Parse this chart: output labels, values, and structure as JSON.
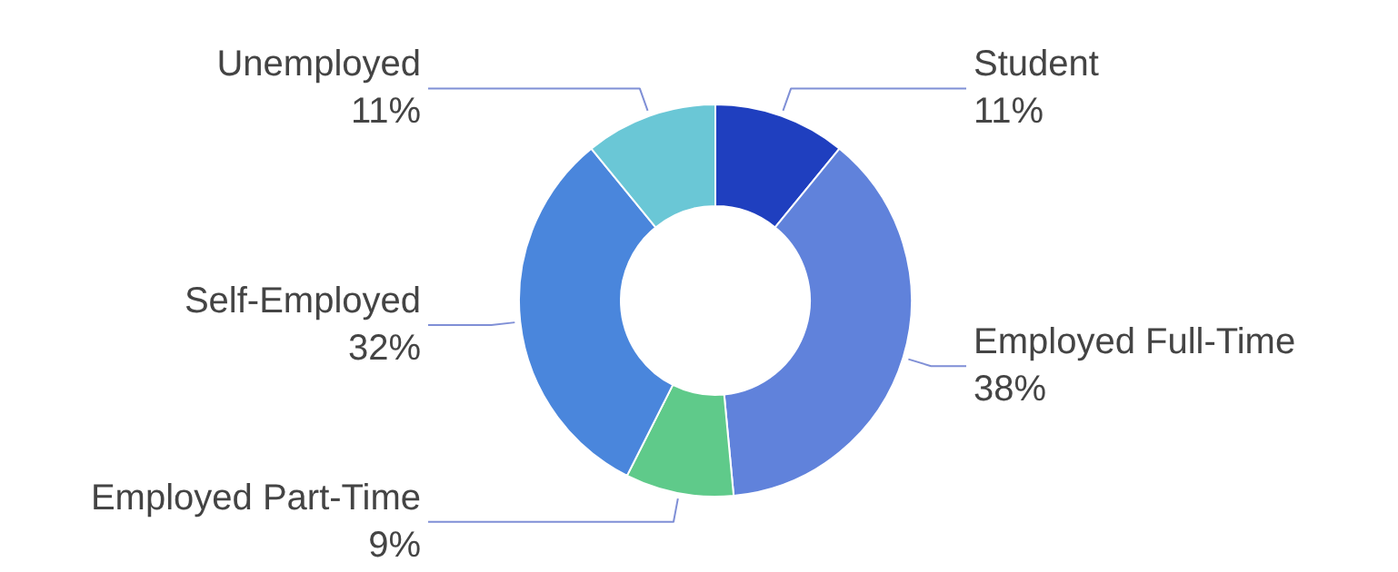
{
  "chart_data": {
    "type": "donut",
    "categories": [
      "Student",
      "Employed Full-Time",
      "Employed Part-Time",
      "Self-Employed",
      "Unemployed"
    ],
    "values": [
      11,
      38,
      9,
      32,
      11
    ],
    "value_labels": [
      "11%",
      "38%",
      "9%",
      "32%",
      "11%"
    ],
    "colors": [
      "#1f3fbf",
      "#6082db",
      "#5fca8a",
      "#4a86dc",
      "#6ac7d6"
    ]
  }
}
